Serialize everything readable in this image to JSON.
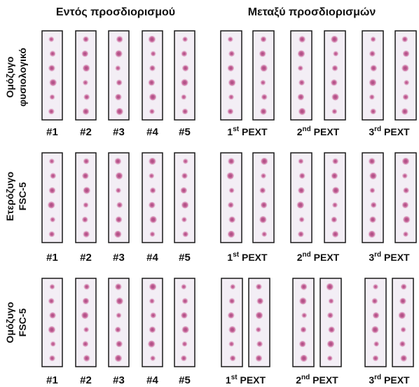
{
  "headers": {
    "within_assay": "Εντός προσδιορισμού",
    "between_assays": "Μεταξύ προσδιορισμών"
  },
  "rows": [
    {
      "label_line1": "Ομόζυγο",
      "label_line2": "φυσιολογικό",
      "dots_per_strip": 6
    },
    {
      "label_line1": "Ετερόζυγο",
      "label_line2": "FSC-5",
      "dots_per_strip": 6
    },
    {
      "label_line1": "Ομόζυγο",
      "label_line2": "FSC-5",
      "dots_per_strip": 6
    }
  ],
  "within_labels": [
    "#1",
    "#2",
    "#3",
    "#4",
    "#5"
  ],
  "between_labels": [
    {
      "num": "1",
      "sup": "st",
      "text": "PEXT"
    },
    {
      "num": "2",
      "sup": "nd",
      "text": "PEXT"
    },
    {
      "num": "3",
      "sup": "rd",
      "text": "PEXT"
    }
  ],
  "colors": {
    "strip_border": "#1a1a1a",
    "strip_fill": "#f3eef5",
    "dot_color": "#c65d95",
    "dot_core": "#9c3a72"
  }
}
